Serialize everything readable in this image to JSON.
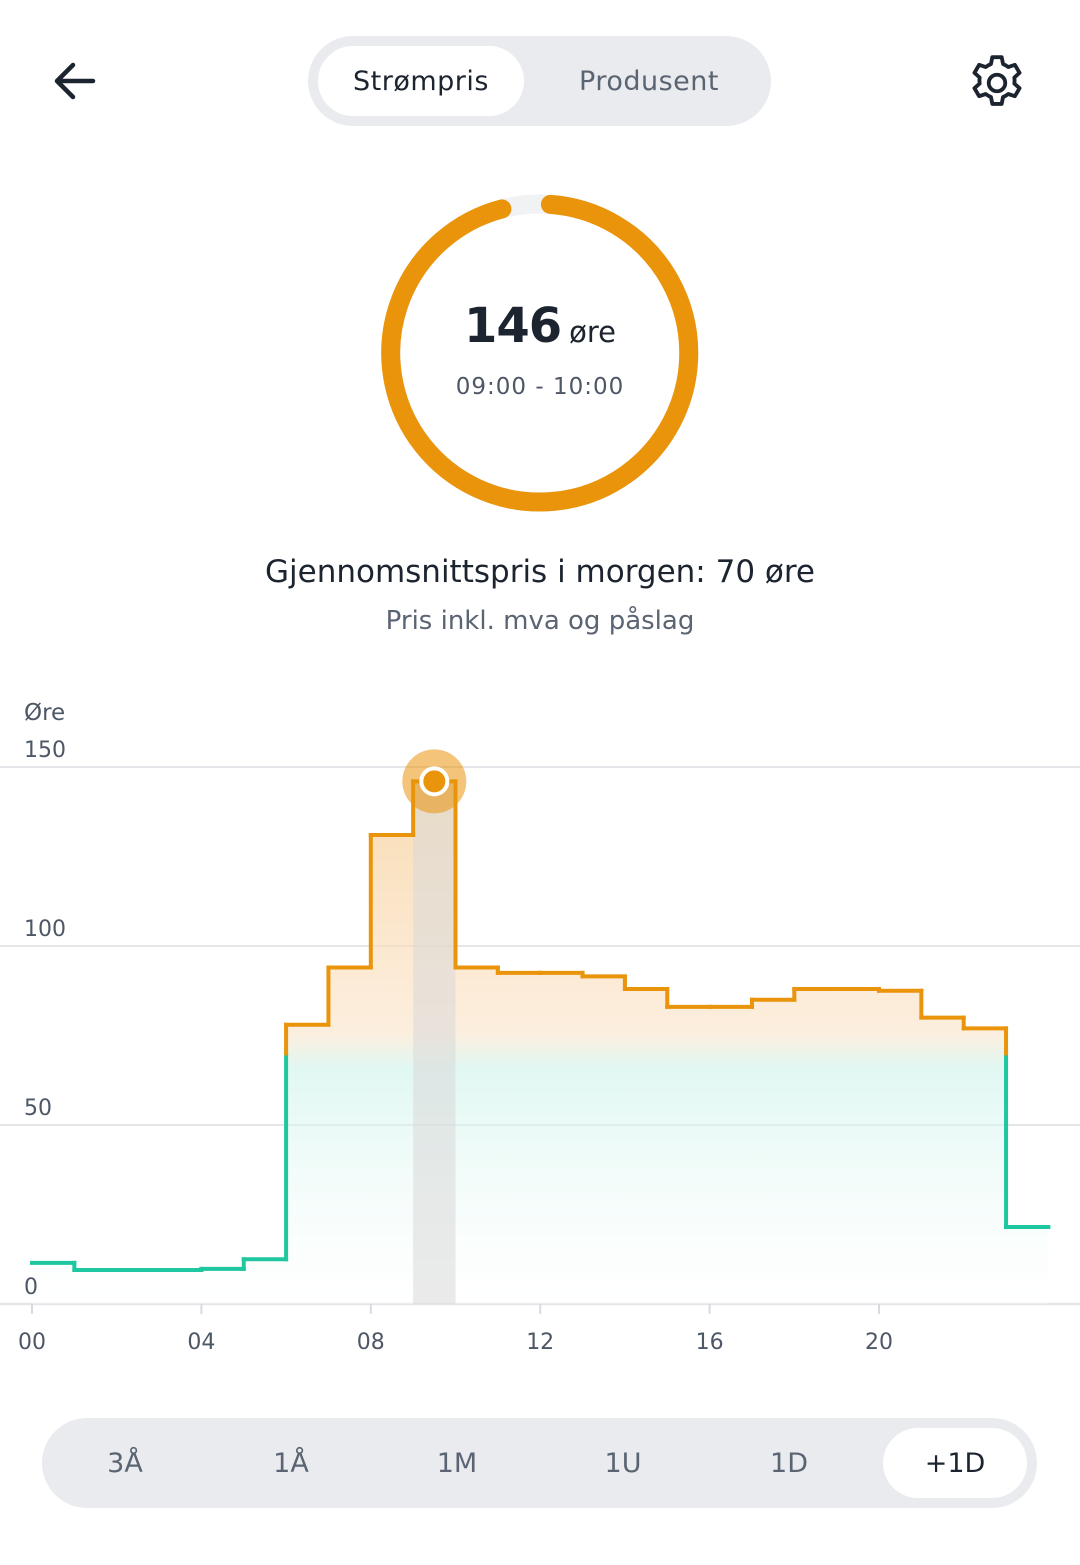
{
  "header": {
    "back_icon": "arrow-left-icon",
    "settings_icon": "gear-icon",
    "tabs": [
      {
        "label": "Strømpris",
        "active": true
      },
      {
        "label": "Produsent",
        "active": false
      }
    ]
  },
  "current_price": {
    "value": "146",
    "unit": "øre",
    "time_range": "09:00 - 10:00",
    "gauge_fill": 0.97
  },
  "summary": {
    "average_text": "Gjennomsnittspris i morgen: 70 øre",
    "note": "Pris inkl. mva og påslag"
  },
  "colors": {
    "accent_orange": "#ea940b",
    "cheap_green": "#1fc7a0",
    "gauge_track": "#f1f2f3"
  },
  "chart_data": {
    "type": "line",
    "step": true,
    "ylabel": "Øre",
    "ylim": [
      0,
      150
    ],
    "y_ticks": [
      "0",
      "50",
      "100",
      "150"
    ],
    "x_ticks": [
      "00",
      "04",
      "08",
      "12",
      "16",
      "20"
    ],
    "x_tick_hours": [
      0,
      4,
      8,
      12,
      16,
      20
    ],
    "hours": [
      0,
      1,
      2,
      3,
      4,
      5,
      6,
      7,
      8,
      9,
      10,
      11,
      12,
      13,
      14,
      15,
      16,
      17,
      18,
      19,
      20,
      21,
      22,
      23
    ],
    "values": [
      11.5,
      9.5,
      9.5,
      9.5,
      9.8,
      12.5,
      78,
      94,
      131,
      146,
      94,
      92.5,
      92.5,
      91.5,
      88,
      83,
      83,
      85,
      88,
      88,
      87.5,
      80,
      77,
      21.5
    ],
    "selected_hour": 9,
    "green_threshold": 70,
    "grid": true
  },
  "range_selector": {
    "options": [
      {
        "label": "3Å",
        "active": false
      },
      {
        "label": "1Å",
        "active": false
      },
      {
        "label": "1M",
        "active": false
      },
      {
        "label": "1U",
        "active": false
      },
      {
        "label": "1D",
        "active": false
      },
      {
        "label": "+1D",
        "active": true
      }
    ]
  }
}
